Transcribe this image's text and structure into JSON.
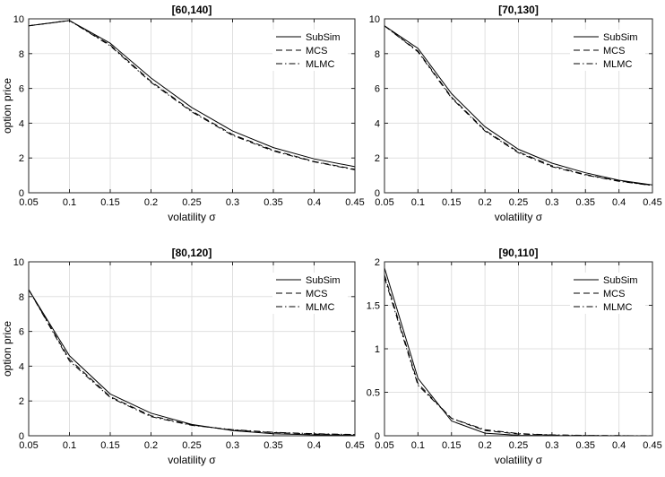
{
  "figure": {
    "background": "#ffffff",
    "line_color": "#000000"
  },
  "chart_data": [
    {
      "type": "line",
      "title": "[60,140]",
      "xlabel": "volatility σ",
      "ylabel": "option price",
      "xlim": [
        0.05,
        0.45
      ],
      "ylim": [
        0,
        10
      ],
      "xticks": [
        "0.05",
        "0.1",
        "0.15",
        "0.2",
        "0.25",
        "0.3",
        "0.35",
        "0.4",
        "0.45"
      ],
      "yticks": [
        "0",
        "2",
        "4",
        "6",
        "8",
        "10"
      ],
      "legend_position": "top-right",
      "grid": true,
      "x": [
        0.05,
        0.1,
        0.15,
        0.2,
        0.25,
        0.3,
        0.35,
        0.4,
        0.45
      ],
      "series": [
        {
          "name": "SubSim",
          "style": "solid",
          "values": [
            9.6,
            9.9,
            8.6,
            6.6,
            4.9,
            3.55,
            2.6,
            1.95,
            1.5
          ]
        },
        {
          "name": "MCS",
          "style": "dashed",
          "values": [
            9.6,
            9.9,
            8.5,
            6.4,
            4.7,
            3.35,
            2.45,
            1.8,
            1.35
          ]
        },
        {
          "name": "MLMC",
          "style": "dashdot",
          "values": [
            9.6,
            9.9,
            8.45,
            6.35,
            4.65,
            3.3,
            2.4,
            1.78,
            1.32
          ]
        }
      ]
    },
    {
      "type": "line",
      "title": "[70,130]",
      "xlabel": "volatility σ",
      "ylabel": "",
      "xlim": [
        0.05,
        0.45
      ],
      "ylim": [
        0,
        10
      ],
      "xticks": [
        "0.05",
        "0.1",
        "0.15",
        "0.2",
        "0.25",
        "0.3",
        "0.35",
        "0.4",
        "0.45"
      ],
      "yticks": [
        "0",
        "2",
        "4",
        "6",
        "8",
        "10"
      ],
      "legend_position": "top-right",
      "grid": true,
      "x": [
        0.05,
        0.1,
        0.15,
        0.2,
        0.25,
        0.3,
        0.35,
        0.4,
        0.45
      ],
      "series": [
        {
          "name": "SubSim",
          "style": "solid",
          "values": [
            9.6,
            8.3,
            5.7,
            3.8,
            2.5,
            1.7,
            1.15,
            0.72,
            0.45
          ]
        },
        {
          "name": "MCS",
          "style": "dashed",
          "values": [
            9.6,
            8.15,
            5.5,
            3.6,
            2.35,
            1.55,
            1.05,
            0.68,
            0.43
          ]
        },
        {
          "name": "MLMC",
          "style": "dashdot",
          "values": [
            9.6,
            8.1,
            5.45,
            3.55,
            2.3,
            1.5,
            1.02,
            0.66,
            0.42
          ]
        }
      ]
    },
    {
      "type": "line",
      "title": "[80,120]",
      "xlabel": "volatility σ",
      "ylabel": "option price",
      "xlim": [
        0.05,
        0.45
      ],
      "ylim": [
        0,
        10
      ],
      "xticks": [
        "0.05",
        "0.1",
        "0.15",
        "0.2",
        "0.25",
        "0.3",
        "0.35",
        "0.4",
        "0.45"
      ],
      "yticks": [
        "0",
        "2",
        "4",
        "6",
        "8",
        "10"
      ],
      "legend_position": "top-right",
      "grid": true,
      "x": [
        0.05,
        0.1,
        0.15,
        0.2,
        0.25,
        0.3,
        0.35,
        0.4,
        0.45
      ],
      "series": [
        {
          "name": "SubSim",
          "style": "solid",
          "values": [
            8.4,
            4.6,
            2.4,
            1.3,
            0.65,
            0.3,
            0.12,
            0.05,
            0.03
          ]
        },
        {
          "name": "MCS",
          "style": "dashed",
          "values": [
            8.4,
            4.4,
            2.25,
            1.15,
            0.62,
            0.33,
            0.18,
            0.1,
            0.06
          ]
        },
        {
          "name": "MLMC",
          "style": "dashdot",
          "values": [
            8.4,
            4.3,
            2.2,
            1.1,
            0.6,
            0.35,
            0.2,
            0.12,
            0.07
          ]
        }
      ]
    },
    {
      "type": "line",
      "title": "[90,110]",
      "xlabel": "volatility σ",
      "ylabel": "",
      "xlim": [
        0.05,
        0.45
      ],
      "ylim": [
        0,
        2
      ],
      "xticks": [
        "0.05",
        "0.1",
        "0.15",
        "0.2",
        "0.25",
        "0.3",
        "0.35",
        "0.4",
        "0.45"
      ],
      "yticks": [
        "0",
        "0.5",
        "1",
        "1.5",
        "2"
      ],
      "legend_position": "top-right",
      "grid": true,
      "x": [
        0.05,
        0.1,
        0.15,
        0.2,
        0.25,
        0.3,
        0.35,
        0.4,
        0.45
      ],
      "series": [
        {
          "name": "SubSim",
          "style": "solid",
          "values": [
            1.93,
            0.66,
            0.17,
            0.03,
            0.005,
            0.002,
            0.001,
            0.0,
            0.0
          ]
        },
        {
          "name": "MCS",
          "style": "dashed",
          "values": [
            1.85,
            0.6,
            0.2,
            0.06,
            0.02,
            0.008,
            0.003,
            0.001,
            0.0
          ]
        },
        {
          "name": "MLMC",
          "style": "dashdot",
          "values": [
            1.82,
            0.58,
            0.2,
            0.07,
            0.025,
            0.01,
            0.004,
            0.002,
            0.001
          ]
        }
      ]
    }
  ]
}
